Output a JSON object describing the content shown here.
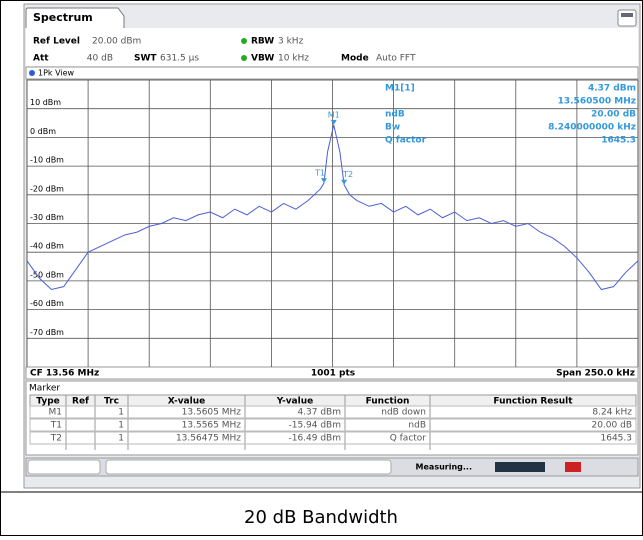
{
  "tab": "Spectrum",
  "header": {
    "ref_level_label": "Ref Level",
    "ref_level": "20.00 dBm",
    "att_label": "Att",
    "att": "40 dB",
    "swt_label": "SWT",
    "swt": "631.5 µs",
    "rbw_label": "RBW",
    "rbw": "3 kHz",
    "vbw_label": "VBW",
    "vbw": "10 kHz",
    "mode_label": "Mode",
    "mode": "Auto FFT"
  },
  "view_label": "1Pk View",
  "marker_info": [
    {
      "label": "M1[1]",
      "value": "4.37 dBm"
    },
    {
      "value": "13.560500 MHz"
    },
    {
      "label": "ndB",
      "value": "20.00 dB"
    },
    {
      "label": "Bw",
      "value": "8.240000000 kHz"
    },
    {
      "label": "Q factor",
      "value": "1645.3"
    }
  ],
  "chart_data": {
    "type": "line",
    "x": [
      13.435,
      13.44,
      13.445,
      13.45,
      13.455,
      13.46,
      13.465,
      13.47,
      13.475,
      13.48,
      13.485,
      13.49,
      13.495,
      13.5,
      13.505,
      13.51,
      13.515,
      13.52,
      13.525,
      13.53,
      13.535,
      13.54,
      13.545,
      13.55,
      13.555,
      13.5565,
      13.558,
      13.5605,
      13.563,
      13.56475,
      13.567,
      13.57,
      13.575,
      13.58,
      13.585,
      13.59,
      13.595,
      13.6,
      13.605,
      13.61,
      13.615,
      13.62,
      13.625,
      13.63,
      13.635,
      13.64,
      13.645,
      13.65,
      13.655,
      13.66,
      13.665,
      13.67,
      13.675,
      13.68,
      13.685
    ],
    "series": [
      {
        "color": "#4a5fd8",
        "values": [
          -43,
          -49,
          -53,
          -52,
          -46,
          -40,
          -38,
          -36,
          -34,
          -33,
          -31,
          -30,
          -28,
          -29,
          -27,
          -26,
          -28,
          -25,
          -27,
          -24,
          -26,
          -23,
          -25,
          -22,
          -18,
          -15.94,
          -5,
          4.37,
          -5,
          -16.49,
          -20,
          -22,
          -24,
          -23,
          -26,
          -24,
          -27,
          -25,
          -28,
          -26,
          -29,
          -28,
          -30,
          -29,
          -31,
          -30,
          -33,
          -35,
          -38,
          -42,
          -47,
          -53,
          -52,
          -47,
          -43
        ]
      }
    ],
    "xlim": [
      13.435,
      13.685
    ],
    "ylim": [
      -80,
      20
    ],
    "xticks": [
      13.435,
      13.46,
      13.485,
      13.51,
      13.535,
      13.56,
      13.585,
      13.61,
      13.635,
      13.66,
      13.685
    ],
    "yticks": [
      {
        "value": 10,
        "label": "10 dBm"
      },
      {
        "value": 0,
        "label": "0 dBm"
      },
      {
        "value": -10,
        "label": "-10 dBm"
      },
      {
        "value": -20,
        "label": "-20 dBm"
      },
      {
        "value": -30,
        "label": "-30 dBm"
      },
      {
        "value": -40,
        "label": "-40 dBm"
      },
      {
        "value": -50,
        "label": "-50 dBm"
      },
      {
        "value": -60,
        "label": "-60 dBm"
      },
      {
        "value": -70,
        "label": "-70 dBm"
      }
    ],
    "grid": true,
    "markers": [
      {
        "label": "M1",
        "x": 13.5605,
        "y": 4.37
      },
      {
        "label": "T1",
        "x": 13.5565,
        "y": -15.94
      },
      {
        "label": "T2",
        "x": 13.56475,
        "y": -16.49
      }
    ]
  },
  "footer": {
    "center_freq": "CF 13.56 MHz",
    "points": "1001 pts",
    "span": "Span 250.0 kHz"
  },
  "marker_table": {
    "title": "Marker",
    "columns": [
      "Type",
      "Ref",
      "Trc",
      "X-value",
      "Y-value",
      "Function",
      "Function Result"
    ],
    "rows": [
      {
        "type": "M1",
        "trc": "1",
        "x": "13.5605 MHz",
        "y": "4.37 dBm",
        "function": "ndB down",
        "result": "8.24 kHz"
      },
      {
        "type": "T1",
        "trc": "1",
        "x": "13.5565 MHz",
        "y": "-15.94 dBm",
        "function": "ndB",
        "result": "20.00 dB"
      },
      {
        "type": "T2",
        "trc": "1",
        "x": "13.56475 MHz",
        "y": "-16.49 dBm",
        "function": "Q factor",
        "result": "1645.3"
      }
    ]
  },
  "status": "Measuring...",
  "caption": "20 dB Bandwidth"
}
